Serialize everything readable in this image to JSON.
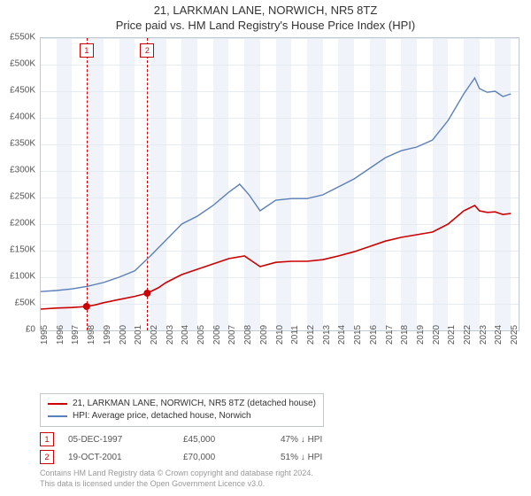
{
  "title": "21, LARKMAN LANE, NORWICH, NR5 8TZ",
  "subtitle": "Price paid vs. HM Land Registry's House Price Index (HPI)",
  "chart": {
    "type": "line",
    "background_color": "#ffffff",
    "border_color": "#c0c8d0",
    "grid_color": "#e6ebf2",
    "vband_color": "#f0f4fa",
    "text_color": "#555555",
    "xlim": [
      1995,
      2025.5
    ],
    "ylim": [
      0,
      550000
    ],
    "ytick_step": 50000,
    "yticks": [
      "£0",
      "£50K",
      "£100K",
      "£150K",
      "£200K",
      "£250K",
      "£300K",
      "£350K",
      "£400K",
      "£450K",
      "£500K",
      "£550K"
    ],
    "xtick_step": 1,
    "xticks": [
      "1995",
      "1996",
      "1997",
      "1998",
      "1999",
      "2000",
      "2001",
      "2002",
      "2003",
      "2004",
      "2005",
      "2006",
      "2007",
      "2008",
      "2009",
      "2010",
      "2011",
      "2012",
      "2013",
      "2014",
      "2015",
      "2016",
      "2017",
      "2018",
      "2019",
      "2020",
      "2021",
      "2022",
      "2023",
      "2024",
      "2025"
    ],
    "xtick_rotation": -90,
    "font_family": "Arial",
    "tick_fontsize": 10,
    "series": [
      {
        "name": "21, LARKMAN LANE, NORWICH, NR5 8TZ (detached house)",
        "color": "#cc0000",
        "line_width": 1.6,
        "marker": "circle",
        "marker_size": 4,
        "data": [
          [
            1995.0,
            40000
          ],
          [
            1996.0,
            42000
          ],
          [
            1997.0,
            43000
          ],
          [
            1997.93,
            45000
          ],
          [
            1998.5,
            48000
          ],
          [
            1999.0,
            52000
          ],
          [
            2000.0,
            58000
          ],
          [
            2001.0,
            64000
          ],
          [
            2001.8,
            70000
          ],
          [
            2002.5,
            80000
          ],
          [
            2003.0,
            90000
          ],
          [
            2004.0,
            105000
          ],
          [
            2005.0,
            115000
          ],
          [
            2006.0,
            125000
          ],
          [
            2007.0,
            135000
          ],
          [
            2008.0,
            140000
          ],
          [
            2008.5,
            130000
          ],
          [
            2009.0,
            120000
          ],
          [
            2010.0,
            128000
          ],
          [
            2011.0,
            130000
          ],
          [
            2012.0,
            130000
          ],
          [
            2013.0,
            133000
          ],
          [
            2014.0,
            140000
          ],
          [
            2015.0,
            148000
          ],
          [
            2016.0,
            158000
          ],
          [
            2017.0,
            168000
          ],
          [
            2018.0,
            175000
          ],
          [
            2019.0,
            180000
          ],
          [
            2020.0,
            185000
          ],
          [
            2021.0,
            200000
          ],
          [
            2022.0,
            225000
          ],
          [
            2022.7,
            235000
          ],
          [
            2023.0,
            225000
          ],
          [
            2023.5,
            222000
          ],
          [
            2024.0,
            223000
          ],
          [
            2024.5,
            218000
          ],
          [
            2025.0,
            220000
          ]
        ],
        "markers_at": [
          [
            1997.93,
            45000
          ],
          [
            2001.8,
            70000
          ]
        ]
      },
      {
        "name": "HPI: Average price, detached house, Norwich",
        "color": "#5b7fb9",
        "line_width": 1.4,
        "data": [
          [
            1995.0,
            73000
          ],
          [
            1996.0,
            75000
          ],
          [
            1997.0,
            78000
          ],
          [
            1998.0,
            83000
          ],
          [
            1999.0,
            90000
          ],
          [
            2000.0,
            100000
          ],
          [
            2001.0,
            112000
          ],
          [
            2002.0,
            140000
          ],
          [
            2003.0,
            170000
          ],
          [
            2004.0,
            200000
          ],
          [
            2005.0,
            215000
          ],
          [
            2006.0,
            235000
          ],
          [
            2007.0,
            260000
          ],
          [
            2007.7,
            275000
          ],
          [
            2008.3,
            255000
          ],
          [
            2009.0,
            225000
          ],
          [
            2010.0,
            245000
          ],
          [
            2011.0,
            248000
          ],
          [
            2012.0,
            248000
          ],
          [
            2013.0,
            255000
          ],
          [
            2014.0,
            270000
          ],
          [
            2015.0,
            285000
          ],
          [
            2016.0,
            305000
          ],
          [
            2017.0,
            325000
          ],
          [
            2018.0,
            338000
          ],
          [
            2019.0,
            345000
          ],
          [
            2020.0,
            358000
          ],
          [
            2021.0,
            395000
          ],
          [
            2022.0,
            445000
          ],
          [
            2022.7,
            475000
          ],
          [
            2023.0,
            455000
          ],
          [
            2023.5,
            448000
          ],
          [
            2024.0,
            450000
          ],
          [
            2024.5,
            440000
          ],
          [
            2025.0,
            445000
          ]
        ]
      }
    ],
    "vmarkers": [
      {
        "label": "1",
        "x": 1997.93,
        "color": "#cc0000"
      },
      {
        "label": "2",
        "x": 2001.8,
        "color": "#cc0000"
      }
    ]
  },
  "legend": {
    "border_color": "#c0c8d0",
    "items": [
      {
        "label": "21, LARKMAN LANE, NORWICH, NR5 8TZ (detached house)",
        "color": "#cc0000"
      },
      {
        "label": "HPI: Average price, detached house, Norwich",
        "color": "#5b7fb9"
      }
    ]
  },
  "data_rows": [
    {
      "marker": "1",
      "date": "05-DEC-1997",
      "price": "£45,000",
      "pct": "47% ↓ HPI"
    },
    {
      "marker": "2",
      "date": "19-OCT-2001",
      "price": "£70,000",
      "pct": "51% ↓ HPI"
    }
  ],
  "footer": {
    "line1": "Contains HM Land Registry data © Crown copyright and database right 2024.",
    "line2": "This data is licensed under the Open Government Licence v3.0."
  }
}
